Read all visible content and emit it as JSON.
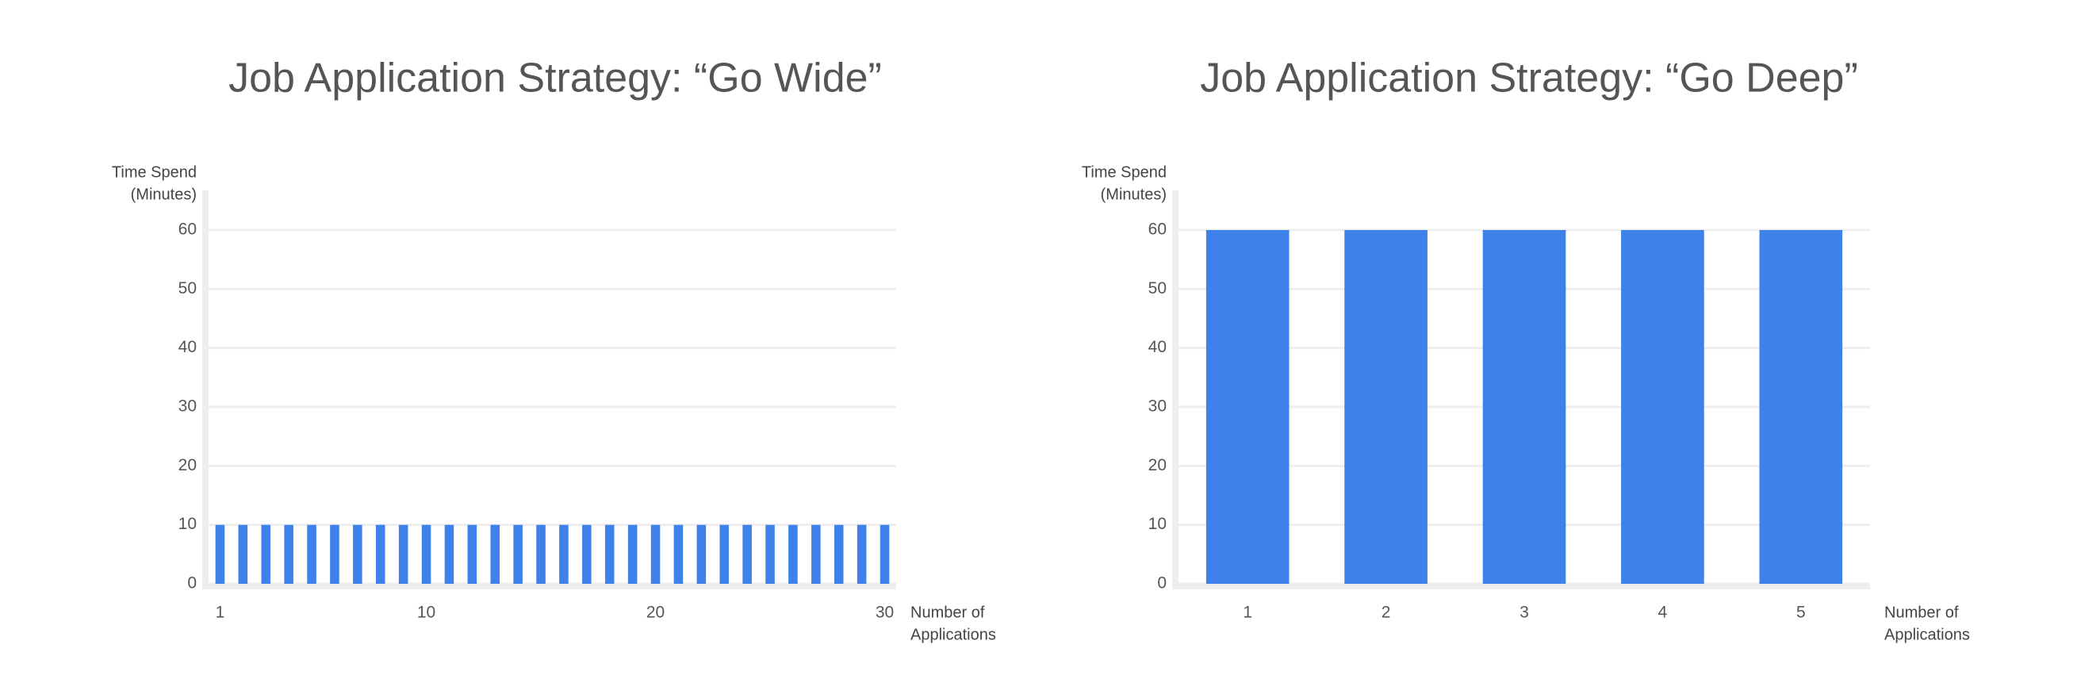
{
  "chart_data": [
    {
      "type": "bar",
      "title": "Job Application Strategy: “Go Wide”",
      "ylabel": [
        "Time Spend",
        "(Minutes)"
      ],
      "xlabel": [
        "Number of",
        "Applications"
      ],
      "categories": [
        "1",
        null,
        null,
        null,
        null,
        null,
        null,
        null,
        null,
        "10",
        null,
        null,
        null,
        null,
        null,
        null,
        null,
        null,
        null,
        "20",
        null,
        null,
        null,
        null,
        null,
        null,
        null,
        null,
        null,
        "30"
      ],
      "values": [
        10,
        10,
        10,
        10,
        10,
        10,
        10,
        10,
        10,
        10,
        10,
        10,
        10,
        10,
        10,
        10,
        10,
        10,
        10,
        10,
        10,
        10,
        10,
        10,
        10,
        10,
        10,
        10,
        10,
        10
      ],
      "color": "#3f81ea",
      "ylim": [
        0,
        60
      ],
      "yticks": [
        0,
        10,
        20,
        30,
        40,
        50,
        60
      ],
      "grid": true
    },
    {
      "type": "bar",
      "title": "Job Application Strategy: “Go Deep”",
      "ylabel": [
        "Time Spend",
        "(Minutes)"
      ],
      "xlabel": [
        "Number of",
        "Applications"
      ],
      "categories": [
        "1",
        "2",
        "3",
        "4",
        "5"
      ],
      "values": [
        60,
        60,
        60,
        60,
        60
      ],
      "color": "#3f81ea",
      "ylim": [
        0,
        60
      ],
      "yticks": [
        0,
        10,
        20,
        30,
        40,
        50,
        60
      ],
      "grid": true
    }
  ]
}
